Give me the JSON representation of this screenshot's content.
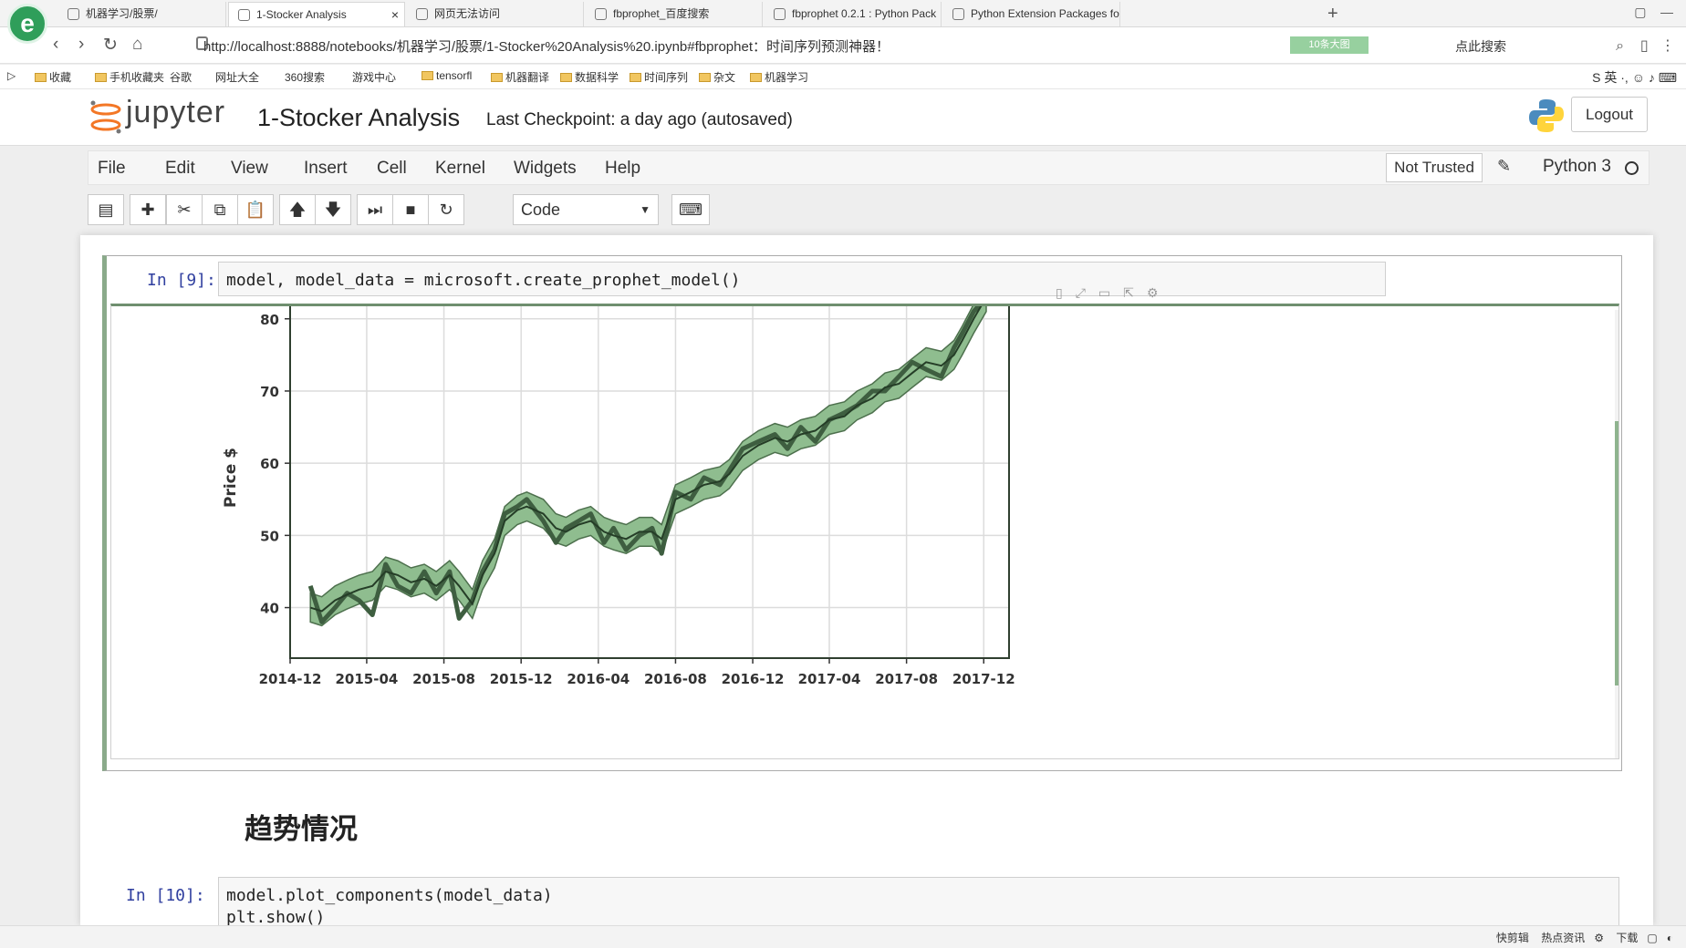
{
  "browser": {
    "tabs": [
      {
        "label": "机器学习/股票/",
        "active": false
      },
      {
        "label": "1-Stocker Analysis",
        "active": true
      },
      {
        "label": "网页无法访问",
        "active": false
      },
      {
        "label": "fbprophet_百度搜索",
        "active": false
      },
      {
        "label": "fbprophet 0.2.1 : Python Pack",
        "active": false
      },
      {
        "label": "Python Extension Packages fo",
        "active": false
      }
    ],
    "url": "http://localhost:8888/notebooks/机器学习/股票/1-Stocker%20Analysis%20.ipynb#fbprophet：时间序列预测神器！",
    "address_badge": "10条大图",
    "address_search": "点此搜索",
    "bookmarks": [
      "收藏",
      "手机收藏夹",
      "谷歌",
      "网址大全",
      "360搜索",
      "游戏中心",
      "tensorfl",
      "机器翻译",
      "数据科学",
      "时间序列",
      "杂文",
      "机器学习"
    ]
  },
  "jupyter": {
    "logo_text": "jupyter",
    "notebook_title": "1-Stocker Analysis",
    "checkpoint": "Last Checkpoint: a day ago (autosaved)",
    "logout": "Logout",
    "menu": [
      "File",
      "Edit",
      "View",
      "Insert",
      "Cell",
      "Kernel",
      "Widgets",
      "Help"
    ],
    "not_trusted": "Not Trusted",
    "kernel": "Python 3",
    "cell_type": "Code"
  },
  "cells": [
    {
      "prompt": "In [9]:",
      "code": [
        "model, model_data = microsoft.create_prophet_model()"
      ]
    },
    {
      "prompt": "In [10]:",
      "code": [
        "model.plot_components(model_data)",
        "plt.show()"
      ]
    }
  ],
  "section_title": "趋势情况",
  "statusbar": [
    "快剪辑",
    "热点资讯",
    "下载"
  ],
  "chart_data": {
    "type": "line",
    "ylabel": "Price $",
    "ylim": [
      33,
      83
    ],
    "yticks": [
      40,
      50,
      60,
      70,
      80
    ],
    "xlim": [
      "2014-12-01",
      "2018-01-10"
    ],
    "xticks": [
      "2014-12",
      "2015-04",
      "2015-08",
      "2015-12",
      "2016-04",
      "2016-08",
      "2016-12",
      "2017-04",
      "2017-08",
      "2017-12"
    ],
    "grid": true,
    "series": [
      {
        "x": [
          "2015-01-02",
          "2015-01-20",
          "2015-02-10",
          "2015-03-01",
          "2015-03-20",
          "2015-04-10",
          "2015-05-01",
          "2015-05-20",
          "2015-06-10",
          "2015-07-01",
          "2015-07-20",
          "2015-08-10",
          "2015-08-25",
          "2015-09-15",
          "2015-10-01",
          "2015-10-20",
          "2015-11-05",
          "2015-11-25",
          "2015-12-10",
          "2016-01-05",
          "2016-01-25",
          "2016-02-10",
          "2016-03-01",
          "2016-03-20",
          "2016-04-10",
          "2016-04-25",
          "2016-05-15",
          "2016-06-05",
          "2016-06-25",
          "2016-07-10",
          "2016-08-01",
          "2016-08-25",
          "2016-09-15",
          "2016-10-10",
          "2016-10-25",
          "2016-11-15",
          "2016-12-10",
          "2017-01-05",
          "2017-01-25",
          "2017-02-15",
          "2017-03-10",
          "2017-04-01",
          "2017-04-25",
          "2017-05-15",
          "2017-06-08",
          "2017-06-28",
          "2017-07-20",
          "2017-08-10",
          "2017-09-01",
          "2017-09-25",
          "2017-10-15",
          "2017-10-28",
          "2017-11-15",
          "2017-12-05"
        ],
        "yhat": [
          40,
          39.5,
          41,
          41.8,
          42.5,
          43,
          45,
          44.5,
          43.5,
          44,
          43,
          44.5,
          43,
          40.5,
          44.5,
          47.5,
          52,
          53.5,
          54,
          53,
          51,
          50.5,
          51.5,
          52,
          50.5,
          50,
          49.5,
          50.5,
          50.5,
          49.5,
          55,
          56,
          57,
          57.5,
          58.5,
          61,
          62.5,
          63.5,
          63,
          64,
          64.5,
          66,
          66.5,
          68,
          69,
          70.5,
          71,
          72.5,
          74,
          73.5,
          75,
          77,
          80,
          83
        ],
        "lower": [
          38,
          37.5,
          39,
          39.8,
          40.5,
          41,
          43,
          42.5,
          41.5,
          42,
          41,
          42.5,
          41,
          38.5,
          42.5,
          45.5,
          50,
          51.5,
          52,
          51,
          49,
          48.5,
          49.5,
          50,
          48.5,
          48,
          47.5,
          48.5,
          48.5,
          47.5,
          53,
          54,
          55,
          55.5,
          56.5,
          59,
          60.5,
          61.5,
          61,
          62,
          62.5,
          64,
          64.5,
          66,
          67,
          68.5,
          69,
          70.5,
          72,
          71.5,
          73,
          75,
          78,
          81
        ],
        "upper": [
          42,
          41.5,
          43,
          43.8,
          44.5,
          45,
          47,
          46.5,
          45.5,
          46,
          45,
          46.5,
          45,
          42.5,
          46.5,
          49.5,
          54,
          55.5,
          56,
          55,
          53,
          52.5,
          53.5,
          54,
          52.5,
          52,
          51.5,
          52.5,
          52.5,
          51.5,
          57,
          58,
          59,
          59.5,
          60.5,
          63,
          64.5,
          65.5,
          65,
          66,
          66.5,
          68,
          68.5,
          70,
          71,
          72.5,
          73,
          74.5,
          76,
          75.5,
          77,
          79,
          82,
          85
        ],
        "observed": [
          43,
          38,
          40,
          42,
          41,
          39,
          46,
          43,
          42,
          45,
          42,
          45,
          38.5,
          41,
          45,
          48,
          53,
          54,
          55,
          52,
          49,
          51,
          52,
          53,
          49,
          51,
          48,
          50,
          51,
          47.5,
          56,
          55,
          58,
          57,
          59,
          62,
          63,
          64,
          62,
          65,
          63,
          66,
          67,
          68,
          70,
          70,
          72,
          74,
          73,
          72,
          76,
          78,
          81,
          83
        ]
      }
    ]
  }
}
